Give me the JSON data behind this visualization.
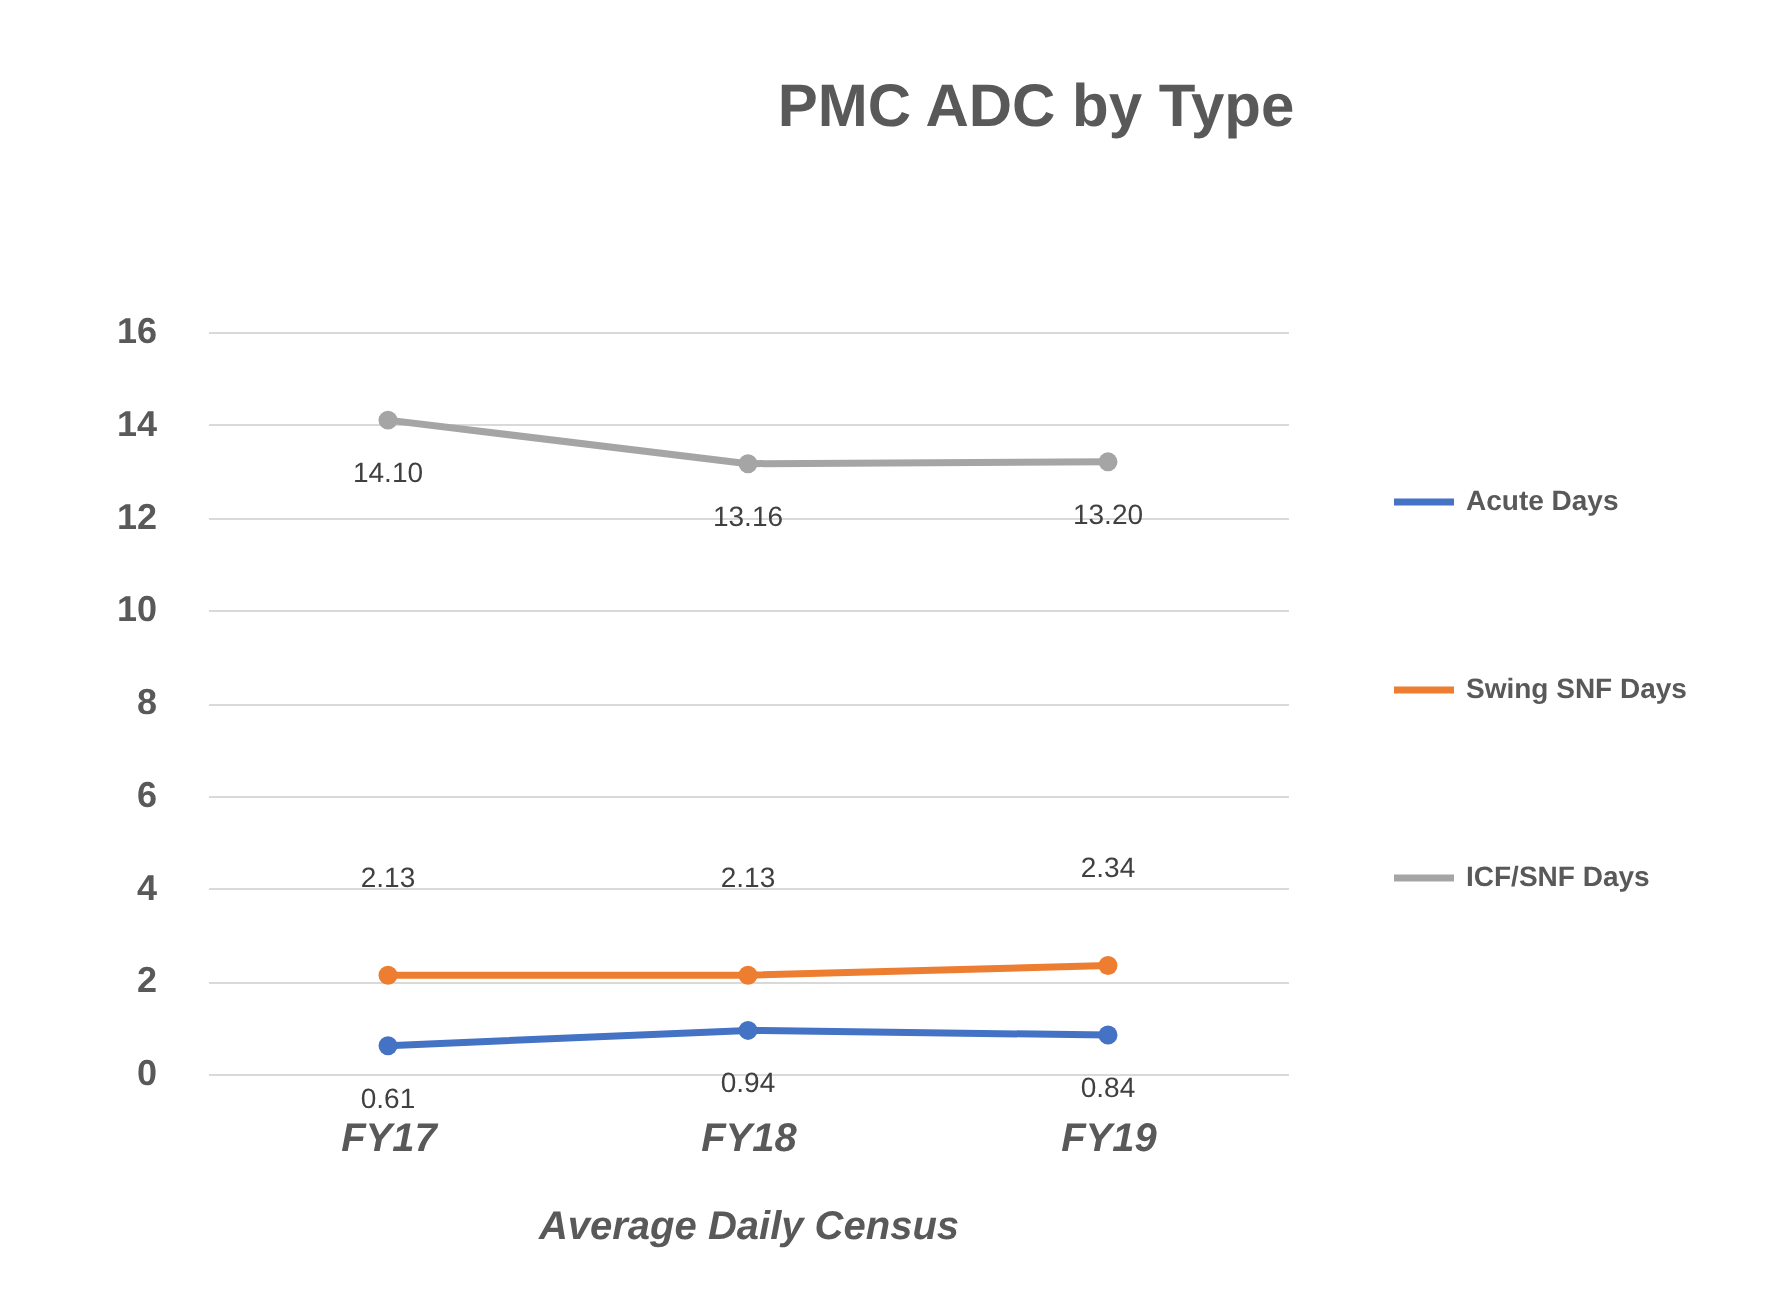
{
  "chart_data": {
    "type": "line",
    "title": "PMC ADC by Type",
    "xlabel": "Average Daily Census",
    "categories": [
      "FY17",
      "FY18",
      "FY19"
    ],
    "series": [
      {
        "name": "Acute Days",
        "color": "#4472c4",
        "values": [
          0.61,
          0.94,
          0.84
        ],
        "value_labels": [
          "0.61",
          "0.94",
          "0.84"
        ]
      },
      {
        "name": "Swing SNF Days",
        "color": "#ed7d31",
        "values": [
          2.13,
          2.13,
          2.34
        ],
        "value_labels": [
          "2.13",
          "2.13",
          "2.34"
        ]
      },
      {
        "name": "ICF/SNF Days",
        "color": "#a5a5a5",
        "values": [
          14.1,
          13.16,
          13.2
        ],
        "value_labels": [
          "14.10",
          "13.16",
          "13.20"
        ]
      }
    ],
    "ylim": [
      0,
      16
    ],
    "yticks": [
      0,
      2,
      4,
      6,
      8,
      10,
      12,
      14,
      16
    ],
    "grid": "y",
    "legend": "right",
    "marker": "circle",
    "line_style": "solid"
  }
}
